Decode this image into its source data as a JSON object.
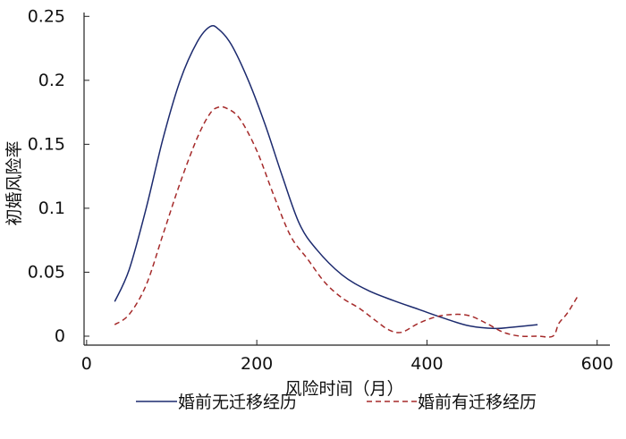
{
  "chart_data": {
    "type": "line",
    "title": "",
    "xlabel": "风险时间（月）",
    "ylabel": "初婚风险率",
    "xlim": [
      -3,
      615
    ],
    "ylim": [
      -0.007,
      0.253
    ],
    "x_ticks": [
      0,
      200,
      400,
      600
    ],
    "x_tick_labels": [
      "0",
      "200",
      "400",
      "600"
    ],
    "y_ticks": [
      0,
      0.05,
      0.1,
      0.15,
      0.2,
      0.25
    ],
    "y_tick_labels": [
      "0",
      "0.05",
      "0.1",
      "0.15",
      "0.2",
      "0.25"
    ],
    "grid": false,
    "legend_position": "bottom",
    "series": [
      {
        "name": "婚前无迁移经历",
        "color": "#1c2a6e",
        "dash": "solid",
        "x": [
          33,
          50,
          70,
          90,
          110,
          130,
          145,
          155,
          170,
          190,
          210,
          230,
          250,
          270,
          300,
          330,
          360,
          390,
          420,
          450,
          480,
          500,
          530
        ],
        "y": [
          0.027,
          0.052,
          0.1,
          0.155,
          0.2,
          0.23,
          0.242,
          0.24,
          0.228,
          0.2,
          0.165,
          0.125,
          0.088,
          0.068,
          0.048,
          0.036,
          0.028,
          0.021,
          0.014,
          0.008,
          0.006,
          0.007,
          0.009
        ]
      },
      {
        "name": "婚前有迁移经历",
        "color": "#a52a2a",
        "dash": "dashed",
        "x": [
          33,
          50,
          70,
          90,
          110,
          130,
          145,
          155,
          165,
          180,
          200,
          220,
          240,
          260,
          280,
          300,
          320,
          340,
          355,
          370,
          390,
          410,
          430,
          450,
          470,
          490,
          510,
          530,
          548,
          555,
          565,
          577
        ],
        "y": [
          0.009,
          0.017,
          0.04,
          0.08,
          0.12,
          0.155,
          0.174,
          0.179,
          0.178,
          0.17,
          0.145,
          0.11,
          0.078,
          0.06,
          0.042,
          0.03,
          0.022,
          0.012,
          0.005,
          0.003,
          0.01,
          0.015,
          0.017,
          0.016,
          0.01,
          0.003,
          0.0,
          0.0,
          0.0,
          0.01,
          0.018,
          0.031
        ]
      }
    ]
  }
}
